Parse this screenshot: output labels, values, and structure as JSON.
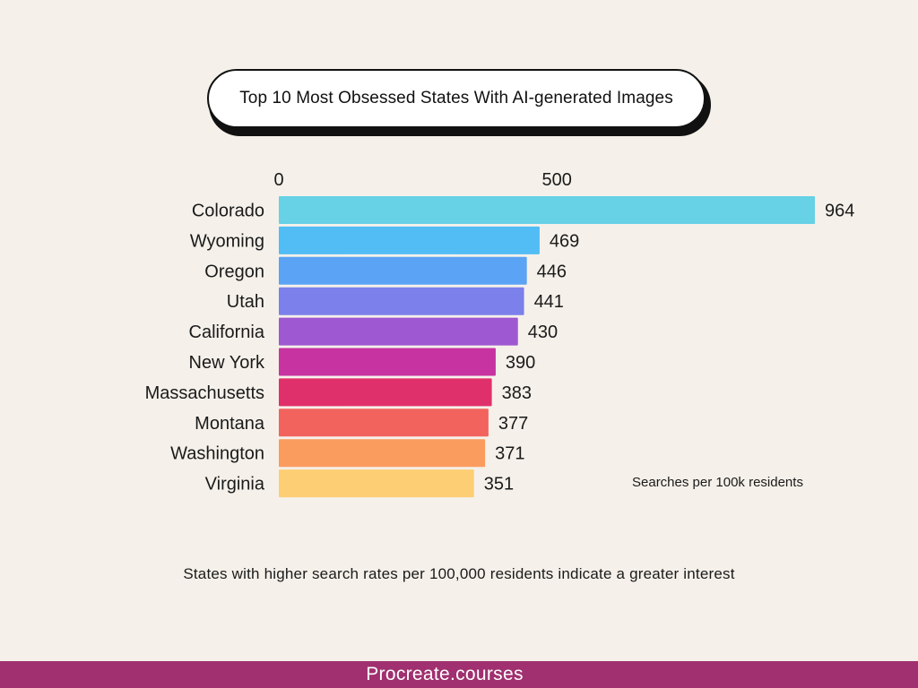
{
  "header": {
    "title": "Top 10 Most Obsessed States With AI-generated Images"
  },
  "chart_data": {
    "type": "bar",
    "orientation": "horizontal",
    "categories": [
      "Colorado",
      "Wyoming",
      "Oregon",
      "Utah",
      "California",
      "New York",
      "Massachusetts",
      "Montana",
      "Washington",
      "Virginia"
    ],
    "values": [
      964,
      469,
      446,
      441,
      430,
      390,
      383,
      377,
      371,
      351
    ],
    "value_labels": [
      "964",
      "469",
      "446",
      "441",
      "430",
      "390",
      "383",
      "377",
      "371",
      "351"
    ],
    "bar_colors": [
      "#67d1e6",
      "#52bdf4",
      "#5ba3f4",
      "#7b80ea",
      "#9e58d1",
      "#c733a1",
      "#e0306b",
      "#f2635d",
      "#fb9c5f",
      "#fece74"
    ],
    "x_ticks": [
      0,
      500
    ],
    "x_tick_labels": [
      "0",
      "500"
    ],
    "xlim": [
      0,
      964
    ],
    "xaxis_position": "top",
    "grid": false,
    "legend": "none",
    "unit_note": "Searches per 100k residents"
  },
  "footnote": "States with higher search rates per 100,000 residents indicate a greater interest",
  "footer": {
    "brand": "Procreate.courses",
    "color": "#a0306f"
  }
}
